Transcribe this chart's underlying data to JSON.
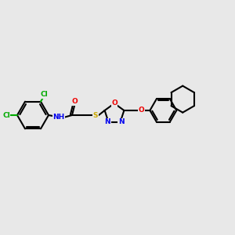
{
  "bg": "#e8e8e8",
  "bond_color": "#000000",
  "bw": 1.5,
  "atom_colors": {
    "C": "#000000",
    "N": "#0000ee",
    "O": "#ee0000",
    "S": "#ccaa00",
    "Cl": "#00aa00",
    "H": "#000000"
  },
  "fs": 6.5
}
